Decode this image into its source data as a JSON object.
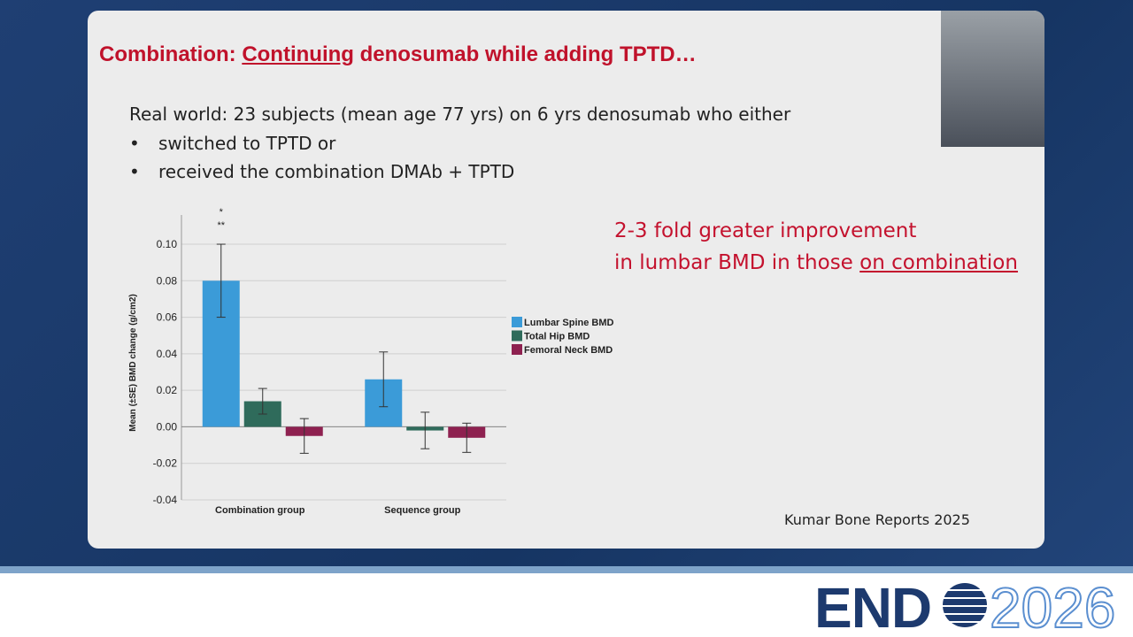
{
  "slide": {
    "title_prefix": "Combination: ",
    "title_underlined": "Continuing",
    "title_suffix": " denosumab while adding TPTD…",
    "intro": "Real world: 23 subjects (mean age 77 yrs) on 6 yrs denosumab who either",
    "bullets": [
      "switched to TPTD or",
      "received the combination DMAb + TPTD"
    ],
    "callout_line1": "2-3 fold greater improvement",
    "callout_line2_prefix": "in lumbar BMD in those ",
    "callout_line2_underlined": "on combination",
    "citation": "Kumar Bone Reports 2025",
    "logo_left": "END",
    "logo_right": "2026"
  },
  "chart_data": {
    "type": "bar",
    "ylabel": "Mean (±SE) BMD change (g/cm2)",
    "categories": [
      "Combination group",
      "Sequence group"
    ],
    "series": [
      {
        "name": "Lumbar Spine BMD",
        "color": "#3b9bd8",
        "values": [
          0.08,
          0.026
        ],
        "errors": [
          0.02,
          0.015
        ]
      },
      {
        "name": "Total Hip BMD",
        "color": "#2f6b5b",
        "values": [
          0.014,
          -0.002
        ],
        "errors": [
          0.007,
          0.01
        ]
      },
      {
        "name": "Femoral Neck BMD",
        "color": "#8e2150",
        "values": [
          -0.005,
          -0.006
        ],
        "errors": [
          0.0095,
          0.008
        ]
      }
    ],
    "annotations": [
      "*",
      "**"
    ],
    "ylim": [
      -0.04,
      0.116
    ],
    "yticks": [
      {
        "value": -0.04,
        "label": "-0.04"
      },
      {
        "value": -0.02,
        "label": "-0.02"
      },
      {
        "value": 0,
        "label": "0.00"
      },
      {
        "value": 0.02,
        "label": "0.02"
      },
      {
        "value": 0.04,
        "label": "0.04"
      },
      {
        "value": 0.06,
        "label": "0.06"
      },
      {
        "value": 0.08,
        "label": "0.08"
      },
      {
        "value": 0.1,
        "label": "0.10"
      }
    ],
    "grid": true
  }
}
